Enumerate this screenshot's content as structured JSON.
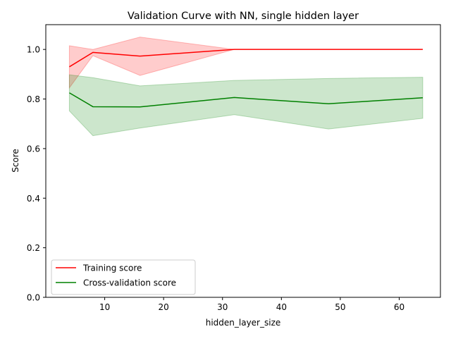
{
  "chart_data": {
    "type": "line",
    "title": "Validation Curve with NN, single hidden layer",
    "xlabel": "hidden_layer_size",
    "ylabel": "Score",
    "xlim": [
      0,
      67
    ],
    "ylim": [
      0.0,
      1.1
    ],
    "x_ticks": [
      10,
      20,
      30,
      40,
      50,
      60
    ],
    "y_ticks": [
      0.0,
      0.2,
      0.4,
      0.6,
      0.8,
      1.0
    ],
    "y_tick_labels": [
      "0.0",
      "0.2",
      "0.4",
      "0.6",
      "0.8",
      "1.0"
    ],
    "grid": false,
    "legend_position": "lower-left",
    "x": [
      4,
      8,
      16,
      32,
      48,
      64
    ],
    "series": [
      {
        "name": "Training score",
        "color": "#ff0000",
        "band_color": "#ff0000",
        "band_opacity": 0.2,
        "values": [
          0.93,
          0.988,
          0.973,
          1.0,
          1.0,
          1.0
        ],
        "lower": [
          0.845,
          0.975,
          0.895,
          1.0,
          1.0,
          1.0
        ],
        "upper": [
          1.015,
          1.0,
          1.05,
          1.0,
          1.0,
          1.0
        ]
      },
      {
        "name": "Cross-validation score",
        "color": "#008000",
        "band_color": "#008000",
        "band_opacity": 0.2,
        "values": [
          0.825,
          0.769,
          0.768,
          0.806,
          0.781,
          0.805
        ],
        "lower": [
          0.752,
          0.652,
          0.683,
          0.737,
          0.679,
          0.722
        ],
        "upper": [
          0.898,
          0.886,
          0.853,
          0.875,
          0.883,
          0.888
        ]
      }
    ]
  }
}
